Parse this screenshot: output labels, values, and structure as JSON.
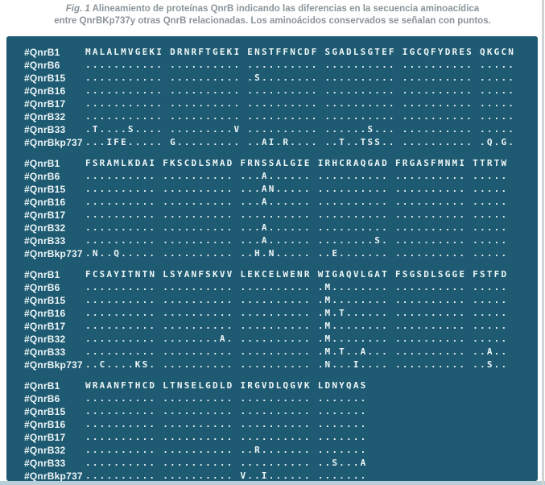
{
  "caption": {
    "fig_label": "Fig. 1",
    "line1": "Alineamiento de proteínas QnrB indicando las diferencias en la secuencia aminoacídica",
    "line2": "entre QnrBKp737y otras QnrB relacionadas. Los aminoácidos conservados se señalan con puntos."
  },
  "colors": {
    "panel_bg": "#1e5a71",
    "panel_text": "#eef6f8",
    "caption_color": "#8b9499",
    "bottom_strip": "#b6cfd8",
    "edge_line": "#cfd3d4",
    "page_bg": "#ffffff"
  },
  "alignment": {
    "row_labels": [
      "#QnrB1",
      "#QnrB6",
      "#QnrB15",
      "#QnrB16",
      "#QnrB17",
      "#QnrB32",
      "#QnrB33",
      "#QnrBkp737"
    ],
    "blocks": [
      {
        "rows": [
          [
            "MALALMVGEKI",
            "DRNRFTGEKI",
            "ENSTFFNCDF",
            "SGADLSGTEF",
            "IGCQFYDRES",
            "QKGCN"
          ],
          [
            "...........",
            "..........",
            "..........",
            "..........",
            "..........",
            "....."
          ],
          [
            "...........",
            "..........",
            ".S........",
            "..........",
            "..........",
            "....."
          ],
          [
            "...........",
            "..........",
            "..........",
            "..........",
            "..........",
            "....."
          ],
          [
            "...........",
            "..........",
            "..........",
            "..........",
            "..........",
            "....."
          ],
          [
            "...........",
            "..........",
            "..........",
            "..........",
            "..........",
            "....."
          ],
          [
            ".T....S....",
            ".........V",
            "..........",
            "......S...",
            "..........",
            "....."
          ],
          [
            "...IFE.....",
            "G.........",
            "..AI.R....",
            "..T..TSS..",
            "..........",
            ".Q.G."
          ]
        ]
      },
      {
        "rows": [
          [
            "FSRAMLKDAI",
            "FKSCDLSMAD",
            "FRNSSALGIE",
            "IRHCRAQGAD",
            "FRGASFMNMI",
            "TTRTW"
          ],
          [
            "..........",
            "..........",
            "...A......",
            "..........",
            "..........",
            "....."
          ],
          [
            "..........",
            "..........",
            "...AN.....",
            "..........",
            "..........",
            "....."
          ],
          [
            "..........",
            "..........",
            "...A......",
            "..........",
            "..........",
            "....."
          ],
          [
            "..........",
            "..........",
            "..........",
            "..........",
            "..........",
            "....."
          ],
          [
            "..........",
            "..........",
            "...A......",
            "..........",
            "..........",
            "....."
          ],
          [
            "..........",
            "..........",
            "...A......",
            "........S.",
            "..........",
            "....."
          ],
          [
            ".N..Q.....",
            "..........",
            "..H.N.....",
            "..E.......",
            "..........",
            "....."
          ]
        ]
      },
      {
        "rows": [
          [
            "FCSAYITNTN",
            "LSYANFSKVV",
            "LEKCELWENR",
            "WIGAQVLGAT",
            "FSGSDLSGGE",
            "FSTFD"
          ],
          [
            "..........",
            "..........",
            "..........",
            ".M........",
            "..........",
            "....."
          ],
          [
            "..........",
            "..........",
            "..........",
            ".M........",
            "..........",
            "....."
          ],
          [
            "..........",
            "..........",
            "..........",
            ".M.T......",
            "..........",
            "....."
          ],
          [
            "..........",
            "..........",
            "..........",
            ".M........",
            "..........",
            "....."
          ],
          [
            "..........",
            "........A.",
            "..........",
            ".M........",
            "..........",
            "....."
          ],
          [
            "..........",
            "..........",
            "..........",
            ".M.T..A...",
            "..........",
            "..A.."
          ],
          [
            "..C....KS.",
            "..........",
            "..........",
            ".N...I....",
            "..........",
            "..S.."
          ]
        ]
      },
      {
        "rows": [
          [
            "WRAANFTHCD",
            "LTNSELGDLD",
            "IRGVDLQGVK",
            "LDNYQAS"
          ],
          [
            "..........",
            "..........",
            "..........",
            "......."
          ],
          [
            "..........",
            "..........",
            "..........",
            "......."
          ],
          [
            "..........",
            "..........",
            "..........",
            "......."
          ],
          [
            "..........",
            "..........",
            "..........",
            "......."
          ],
          [
            "..........",
            "..........",
            "..R.......",
            "......."
          ],
          [
            "..........",
            "..........",
            "..........",
            "..S...A"
          ],
          [
            "..........",
            "..........",
            "V..I......",
            "......."
          ]
        ]
      }
    ]
  }
}
